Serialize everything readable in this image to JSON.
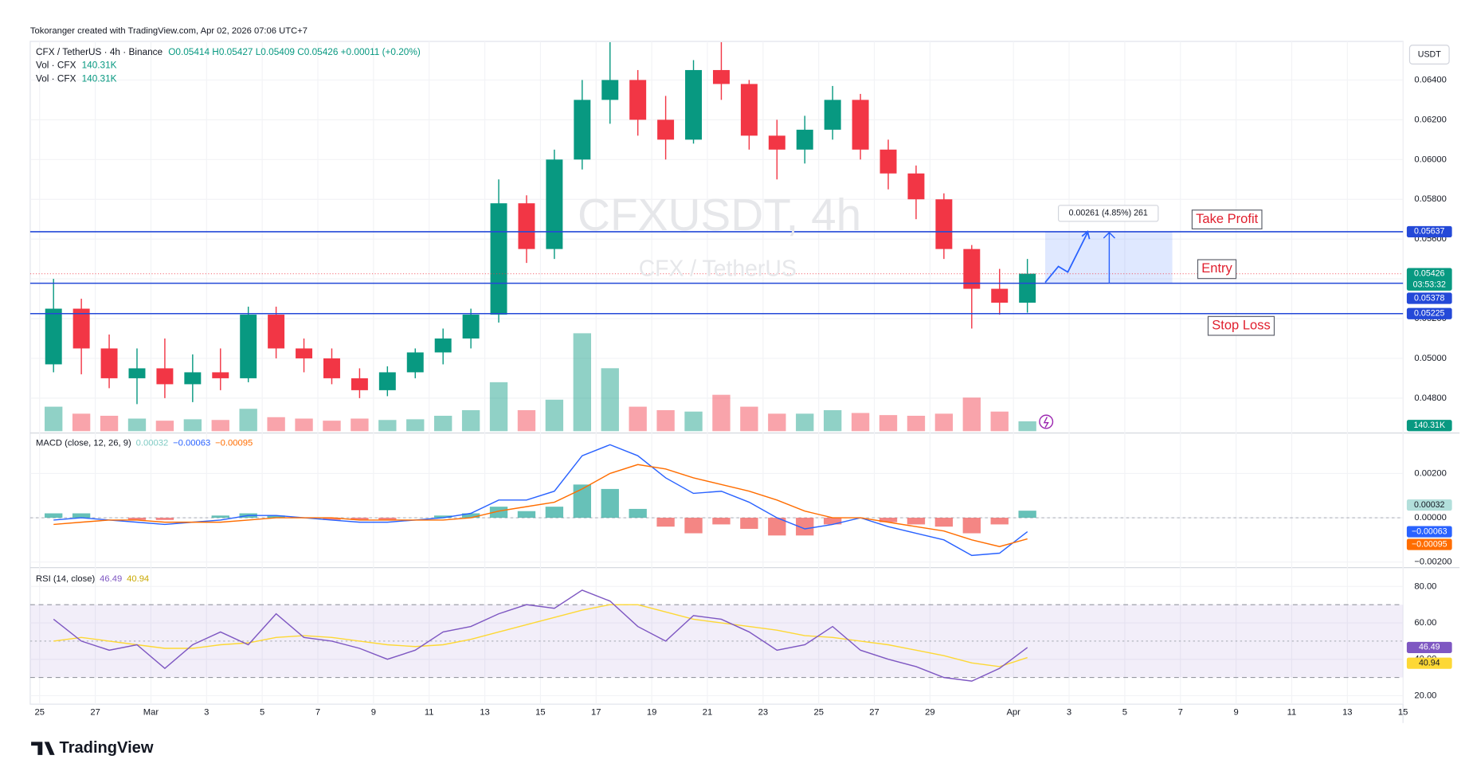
{
  "header": {
    "credit": "Tokoranger created with TradingView.com, Apr 02, 2026 07:06 UTC+7",
    "brand": "TradingView",
    "currency": "USDT"
  },
  "chart_data": [
    {
      "type": "candlestick",
      "title": "CFX / TetherUS · 4h · Binance",
      "ohlc_text": "O0.05414 H0.05427 L0.05409 C0.05426 +0.00011 (+0.20%)",
      "watermark": "CFXUSDT, 4h",
      "watermark_sub": "CFX / TetherUS",
      "volume_title": "Vol · CFX",
      "volume_title_2": "Vol · CFX",
      "x": [
        "2026-02-25",
        "2026-02-26",
        "2026-02-27",
        "2026-02-28",
        "2026-03-01",
        "2026-03-02",
        "2026-03-03",
        "2026-03-04",
        "2026-03-05",
        "2026-03-06",
        "2026-03-07",
        "2026-03-08",
        "2026-03-09",
        "2026-03-10",
        "2026-03-11",
        "2026-03-12",
        "2026-03-13",
        "2026-03-14",
        "2026-03-15",
        "2026-03-16",
        "2026-03-17",
        "2026-03-18",
        "2026-03-19",
        "2026-03-20",
        "2026-03-21",
        "2026-03-22",
        "2026-03-23",
        "2026-03-24",
        "2026-03-25",
        "2026-03-26",
        "2026-03-27",
        "2026-03-28",
        "2026-03-29",
        "2026-03-30",
        "2026-03-31",
        "2026-04-01"
      ],
      "open": [
        0.0497,
        0.0525,
        0.0505,
        0.049,
        0.0495,
        0.0487,
        0.0493,
        0.049,
        0.0522,
        0.0505,
        0.05,
        0.049,
        0.0484,
        0.0493,
        0.0503,
        0.051,
        0.0522,
        0.0578,
        0.0555,
        0.06,
        0.063,
        0.064,
        0.062,
        0.061,
        0.0645,
        0.0638,
        0.0612,
        0.0605,
        0.0615,
        0.063,
        0.0605,
        0.0593,
        0.058,
        0.0555,
        0.0535,
        0.0528
      ],
      "high": [
        0.054,
        0.053,
        0.0512,
        0.0505,
        0.051,
        0.0502,
        0.0505,
        0.0526,
        0.0526,
        0.051,
        0.0505,
        0.0495,
        0.0496,
        0.0505,
        0.0515,
        0.0525,
        0.059,
        0.0582,
        0.0605,
        0.064,
        0.0659,
        0.0645,
        0.0632,
        0.065,
        0.0659,
        0.064,
        0.062,
        0.0622,
        0.0637,
        0.0633,
        0.061,
        0.0597,
        0.0583,
        0.0557,
        0.0545,
        0.055
      ],
      "low": [
        0.0493,
        0.0492,
        0.0485,
        0.0477,
        0.048,
        0.0478,
        0.0484,
        0.0488,
        0.05,
        0.0493,
        0.0487,
        0.048,
        0.0481,
        0.049,
        0.0497,
        0.0505,
        0.0518,
        0.0548,
        0.055,
        0.0595,
        0.0618,
        0.0612,
        0.06,
        0.0608,
        0.063,
        0.0605,
        0.059,
        0.0598,
        0.061,
        0.06,
        0.0585,
        0.057,
        0.055,
        0.0515,
        0.0522,
        0.0523
      ],
      "close": [
        0.0525,
        0.0505,
        0.049,
        0.0495,
        0.0487,
        0.0493,
        0.049,
        0.0522,
        0.0505,
        0.05,
        0.049,
        0.0484,
        0.0493,
        0.0503,
        0.051,
        0.0522,
        0.0578,
        0.0555,
        0.06,
        0.063,
        0.064,
        0.062,
        0.061,
        0.0645,
        0.0638,
        0.0612,
        0.0605,
        0.0615,
        0.063,
        0.0605,
        0.0593,
        0.058,
        0.0555,
        0.0535,
        0.0528,
        0.05426
      ],
      "volume": [
        350,
        250,
        220,
        180,
        150,
        170,
        160,
        320,
        200,
        180,
        150,
        180,
        160,
        170,
        220,
        300,
        700,
        300,
        450,
        1400,
        900,
        350,
        300,
        280,
        520,
        350,
        250,
        250,
        300,
        260,
        230,
        220,
        250,
        480,
        280,
        140.31
      ],
      "volume_last_label": "140.31K",
      "up_color": "#089981",
      "down_color": "#f23645",
      "xlim": [
        "2026-02-25",
        "2026-04-15"
      ],
      "xticks": [
        {
          "value": "2026-02-25",
          "label": "25"
        },
        {
          "value": "2026-02-27",
          "label": "27"
        },
        {
          "value": "2026-03-01",
          "label": "Mar"
        },
        {
          "value": "2026-03-03",
          "label": "3"
        },
        {
          "value": "2026-03-05",
          "label": "5"
        },
        {
          "value": "2026-03-07",
          "label": "7"
        },
        {
          "value": "2026-03-09",
          "label": "9"
        },
        {
          "value": "2026-03-11",
          "label": "11"
        },
        {
          "value": "2026-03-13",
          "label": "13"
        },
        {
          "value": "2026-03-15",
          "label": "15"
        },
        {
          "value": "2026-03-17",
          "label": "17"
        },
        {
          "value": "2026-03-19",
          "label": "19"
        },
        {
          "value": "2026-03-21",
          "label": "21"
        },
        {
          "value": "2026-03-23",
          "label": "23"
        },
        {
          "value": "2026-03-25",
          "label": "25"
        },
        {
          "value": "2026-03-27",
          "label": "27"
        },
        {
          "value": "2026-03-29",
          "label": "29"
        },
        {
          "value": "2026-04-01",
          "label": "Apr"
        },
        {
          "value": "2026-04-03",
          "label": "3"
        },
        {
          "value": "2026-04-05",
          "label": "5"
        },
        {
          "value": "2026-04-07",
          "label": "7"
        },
        {
          "value": "2026-04-09",
          "label": "9"
        },
        {
          "value": "2026-04-11",
          "label": "11"
        },
        {
          "value": "2026-04-13",
          "label": "13"
        },
        {
          "value": "2026-04-15",
          "label": "15"
        }
      ],
      "ylim": [
        0.04634,
        0.06594
      ],
      "yticks": [
        {
          "value": 0.048,
          "label": "0.04800"
        },
        {
          "value": 0.05,
          "label": "0.05000"
        },
        {
          "value": 0.052,
          "label": "0.05200"
        },
        {
          "value": 0.054,
          "label": "0.05400"
        },
        {
          "value": 0.056,
          "label": "0.05600"
        },
        {
          "value": 0.058,
          "label": "0.05800"
        },
        {
          "value": 0.06,
          "label": "0.06000"
        },
        {
          "value": 0.062,
          "label": "0.06200"
        },
        {
          "value": 0.064,
          "label": "0.06400"
        }
      ],
      "grid": true,
      "levels": [
        {
          "name": "Take Profit",
          "value": 0.05637,
          "color": "#2449d8"
        },
        {
          "name": "Entry",
          "value": 0.05378,
          "color": "#2449d8"
        },
        {
          "name": "Stop Loss",
          "value": 0.05225,
          "color": "#2449d8"
        }
      ],
      "last_price": 0.05426,
      "countdown": "03:53:32",
      "measure": {
        "label": "0.00261 (4.85%) 261"
      }
    },
    {
      "type": "macd",
      "title": "MACD (close, 12, 26, 9)",
      "legend_values": [
        "0.00032",
        "−0.00063",
        "−0.00095"
      ],
      "series": [
        {
          "name": "Histogram",
          "color": "#26a69a",
          "negative_color": "#ef5350",
          "values": [
            0.0002,
            0.0002,
            0.0,
            -0.0001,
            -0.0001,
            0.0,
            0.0001,
            0.0002,
            0.0001,
            0.0,
            -0.0001,
            -0.0001,
            -0.0001,
            0.0,
            0.0001,
            0.0002,
            0.0005,
            0.0003,
            0.0005,
            0.0015,
            0.0013,
            0.0004,
            -0.0004,
            -0.0007,
            -0.0003,
            -0.0005,
            -0.0008,
            -0.0008,
            -0.0003,
            0.0,
            -0.0002,
            -0.0003,
            -0.0004,
            -0.0007,
            -0.0003,
            0.00032
          ]
        },
        {
          "name": "MACD",
          "color": "#2962ff",
          "values": [
            -0.0001,
            0.0,
            -0.0001,
            -0.0002,
            -0.0003,
            -0.0002,
            -0.0001,
            0.0001,
            0.0001,
            0.0,
            -0.0001,
            -0.0002,
            -0.0002,
            -0.0001,
            0.0,
            0.0002,
            0.0008,
            0.0008,
            0.0012,
            0.0028,
            0.0033,
            0.0028,
            0.0018,
            0.0011,
            0.0012,
            0.0007,
            0.0,
            -0.0005,
            -0.0003,
            0.0,
            -0.0004,
            -0.0007,
            -0.001,
            -0.0017,
            -0.0016,
            -0.00063
          ]
        },
        {
          "name": "Signal",
          "color": "#ff6d00",
          "values": [
            -0.0003,
            -0.0002,
            -0.0001,
            -0.0001,
            -0.0002,
            -0.0002,
            -0.0002,
            -0.0001,
            0.0,
            0.0,
            0.0,
            -0.0001,
            -0.0001,
            -0.0001,
            -0.0001,
            0.0,
            0.0003,
            0.0005,
            0.0007,
            0.0013,
            0.002,
            0.0024,
            0.0022,
            0.0018,
            0.0015,
            0.0012,
            0.0008,
            0.0003,
            0.0,
            0.0,
            -0.0002,
            -0.0004,
            -0.0006,
            -0.001,
            -0.0013,
            -0.00095
          ]
        }
      ],
      "ylim": [
        -0.00221,
        0.00374
      ],
      "yticks": [
        {
          "value": -0.002,
          "label": "−0.00200"
        },
        {
          "value": 0,
          "label": "0.00000"
        },
        {
          "value": 0.002,
          "label": "0.00200"
        }
      ]
    },
    {
      "type": "rsi",
      "title": "RSI (14, close)",
      "series": [
        {
          "name": "RSI",
          "color": "#7e57c2",
          "values": [
            62,
            50,
            45,
            48,
            35,
            48,
            55,
            48,
            65,
            52,
            50,
            46,
            40,
            45,
            55,
            58,
            65,
            70,
            68,
            78,
            72,
            58,
            50,
            64,
            62,
            55,
            45,
            48,
            58,
            45,
            40,
            36,
            30,
            28,
            35,
            46.49
          ]
        },
        {
          "name": "RSI-based MA",
          "color": "#fdd835",
          "values": [
            50,
            52,
            50,
            48,
            46,
            46,
            48,
            49,
            52,
            53,
            52,
            50,
            48,
            47,
            48,
            51,
            55,
            59,
            63,
            67,
            70,
            70,
            66,
            62,
            60,
            58,
            56,
            53,
            52,
            50,
            48,
            45,
            42,
            38,
            36,
            40.94
          ]
        }
      ],
      "band": [
        30,
        70
      ],
      "middle": 50,
      "ylim": [
        15.34,
        89.31
      ],
      "yticks": [
        {
          "value": 20,
          "label": "20.00"
        },
        {
          "value": 40,
          "label": "40.00"
        },
        {
          "value": 60,
          "label": "60.00"
        },
        {
          "value": 80,
          "label": "80.00"
        }
      ]
    }
  ]
}
